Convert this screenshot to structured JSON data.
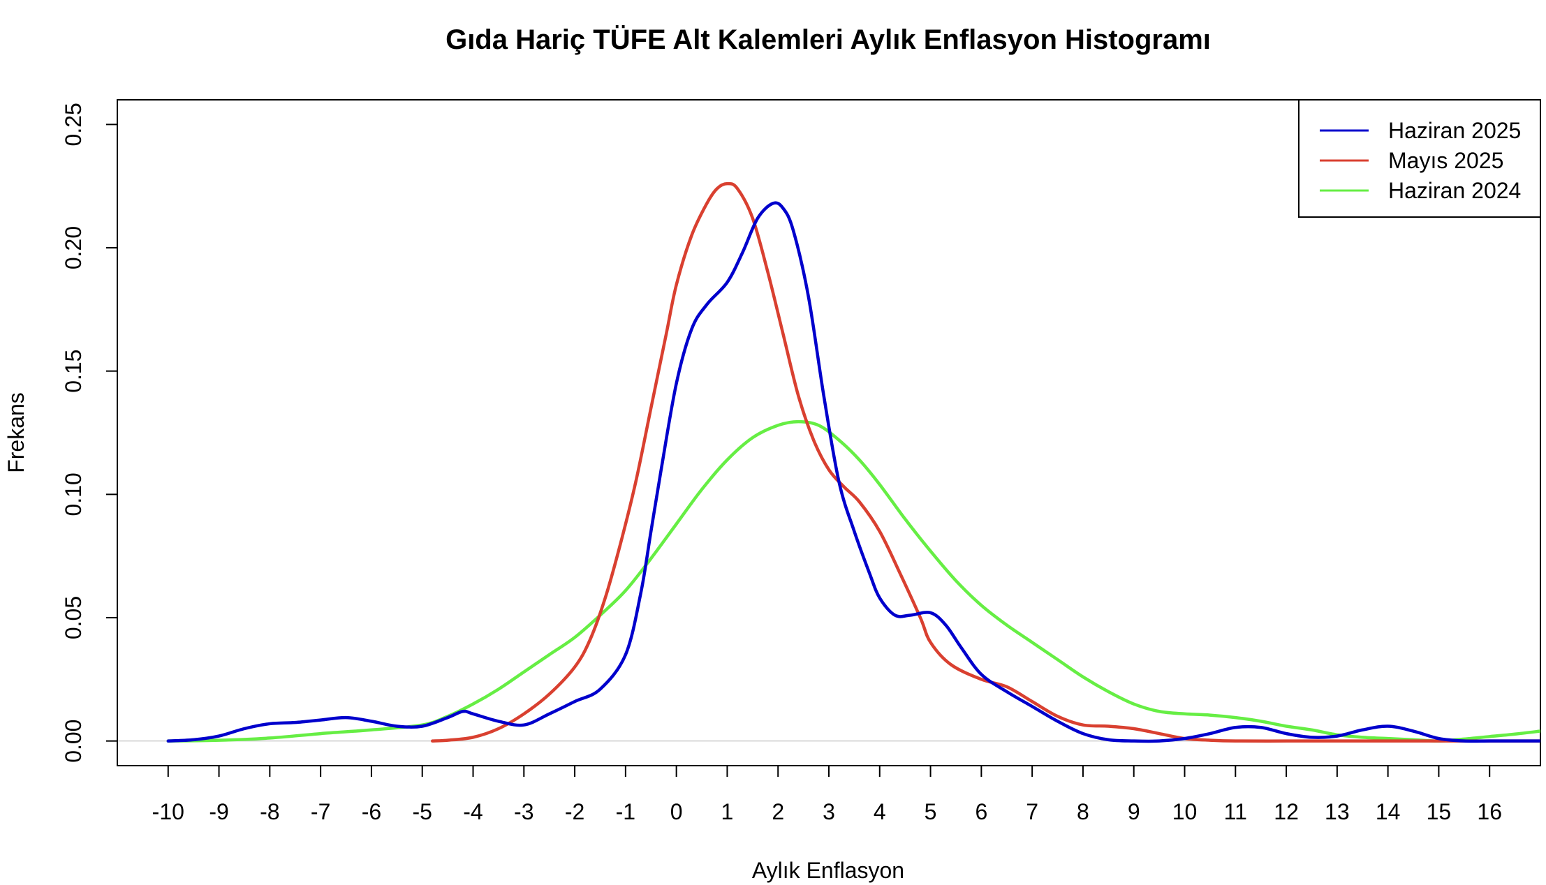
{
  "chart_data": {
    "type": "line",
    "title": "Gıda Hariç TÜFE Alt Kalemleri Aylık Enflasyon Histogramı",
    "xlabel": "Aylık Enflasyon",
    "ylabel": "Frekans",
    "xlim": [
      -11,
      17
    ],
    "ylim": [
      -0.01,
      0.26
    ],
    "x_ticks": [
      -10,
      -9,
      -8,
      -7,
      -6,
      -5,
      -4,
      -3,
      -2,
      -1,
      0,
      1,
      2,
      3,
      4,
      5,
      6,
      7,
      8,
      9,
      10,
      11,
      12,
      13,
      14,
      15,
      16
    ],
    "x_tick_labels": [
      "-10",
      "-9",
      "-8",
      "-7",
      "-6",
      "-5",
      "-4",
      "-3",
      "-2",
      "-1",
      "0",
      "1",
      "2",
      "3",
      "4",
      "5",
      "6",
      "7",
      "8",
      "9",
      "10",
      "11",
      "12",
      "13",
      "14",
      "15",
      "16"
    ],
    "y_ticks": [
      0,
      0.05,
      0.1,
      0.15,
      0.2,
      0.25
    ],
    "y_tick_labels": [
      "0.00",
      "0.05",
      "0.10",
      "0.15",
      "0.20",
      "0.25"
    ],
    "grid": false,
    "baseline": 0,
    "legend_position": "top-right",
    "series": [
      {
        "name": "Haziran 2025",
        "color": "#0000CC",
        "x": [
          -10,
          -9.5,
          -9,
          -8.5,
          -8,
          -7.5,
          -7,
          -6.5,
          -6,
          -5.5,
          -5,
          -4.5,
          -4.2,
          -4,
          -3.5,
          -3,
          -2.5,
          -2,
          -1.5,
          -1,
          -0.7,
          -0.5,
          -0.3,
          0,
          0.3,
          0.6,
          1,
          1.3,
          1.6,
          1.9,
          2.1,
          2.3,
          2.6,
          2.9,
          3.2,
          3.5,
          3.8,
          4,
          4.3,
          4.6,
          5,
          5.3,
          5.6,
          6,
          6.5,
          7,
          7.5,
          8,
          8.5,
          9,
          9.5,
          10,
          10.5,
          11,
          11.5,
          12,
          12.5,
          13,
          13.5,
          14,
          14.5,
          15,
          15.5,
          16,
          16.5,
          17
        ],
        "y": [
          0,
          0.0005,
          0.002,
          0.005,
          0.007,
          0.0075,
          0.0085,
          0.0095,
          0.008,
          0.006,
          0.006,
          0.0095,
          0.012,
          0.011,
          0.008,
          0.0065,
          0.011,
          0.016,
          0.021,
          0.035,
          0.06,
          0.085,
          0.11,
          0.145,
          0.167,
          0.177,
          0.186,
          0.198,
          0.212,
          0.218,
          0.216,
          0.207,
          0.18,
          0.14,
          0.105,
          0.085,
          0.068,
          0.058,
          0.051,
          0.051,
          0.052,
          0.047,
          0.038,
          0.027,
          0.02,
          0.014,
          0.008,
          0.003,
          0.0005,
          0,
          0,
          0.001,
          0.003,
          0.0055,
          0.0055,
          0.003,
          0.0015,
          0.002,
          0.0045,
          0.006,
          0.004,
          0.001,
          0,
          0,
          0,
          0
        ]
      },
      {
        "name": "Mayıs 2025",
        "color": "#D94030",
        "x": [
          -4.8,
          -4.5,
          -4,
          -3.5,
          -3,
          -2.5,
          -2,
          -1.7,
          -1.4,
          -1.1,
          -0.8,
          -0.5,
          -0.2,
          0,
          0.3,
          0.6,
          0.8,
          1,
          1.2,
          1.5,
          1.8,
          2.1,
          2.4,
          2.7,
          3,
          3.3,
          3.6,
          4,
          4.4,
          4.8,
          5,
          5.4,
          6,
          6.5,
          7,
          7.5,
          8,
          8.5,
          9,
          9.5,
          10,
          10.5,
          11,
          12,
          13,
          14,
          15,
          16,
          17
        ],
        "y": [
          0,
          0.0003,
          0.0015,
          0.005,
          0.011,
          0.019,
          0.03,
          0.041,
          0.058,
          0.08,
          0.105,
          0.135,
          0.165,
          0.185,
          0.205,
          0.218,
          0.224,
          0.226,
          0.224,
          0.212,
          0.19,
          0.165,
          0.14,
          0.122,
          0.11,
          0.103,
          0.097,
          0.085,
          0.068,
          0.05,
          0.04,
          0.031,
          0.025,
          0.022,
          0.016,
          0.01,
          0.0065,
          0.006,
          0.005,
          0.003,
          0.001,
          0.0003,
          0,
          0,
          0,
          0,
          0,
          0,
          0
        ]
      },
      {
        "name": "Haziran 2024",
        "color": "#66EE44",
        "x": [
          -10,
          -9,
          -8,
          -7,
          -6,
          -5,
          -4.5,
          -4,
          -3.5,
          -3,
          -2.5,
          -2,
          -1.5,
          -1,
          -0.5,
          0,
          0.5,
          1,
          1.5,
          2,
          2.4,
          2.8,
          3.2,
          3.6,
          4,
          4.5,
          5,
          5.5,
          6,
          6.5,
          7,
          7.5,
          8,
          8.5,
          9,
          9.5,
          10,
          10.5,
          11,
          11.5,
          12,
          12.5,
          13,
          13.5,
          14,
          14.5,
          15,
          15.5,
          16,
          16.5,
          17
        ],
        "y": [
          0,
          0.0003,
          0.0012,
          0.003,
          0.0045,
          0.0065,
          0.01,
          0.015,
          0.021,
          0.028,
          0.035,
          0.042,
          0.051,
          0.061,
          0.074,
          0.088,
          0.102,
          0.114,
          0.123,
          0.128,
          0.1295,
          0.128,
          0.122,
          0.114,
          0.104,
          0.09,
          0.077,
          0.065,
          0.055,
          0.047,
          0.04,
          0.033,
          0.026,
          0.02,
          0.015,
          0.012,
          0.011,
          0.0105,
          0.0095,
          0.008,
          0.006,
          0.0045,
          0.0025,
          0.0015,
          0.001,
          0.0005,
          0,
          0.0008,
          0.0018,
          0.0028,
          0.004
        ]
      }
    ]
  }
}
